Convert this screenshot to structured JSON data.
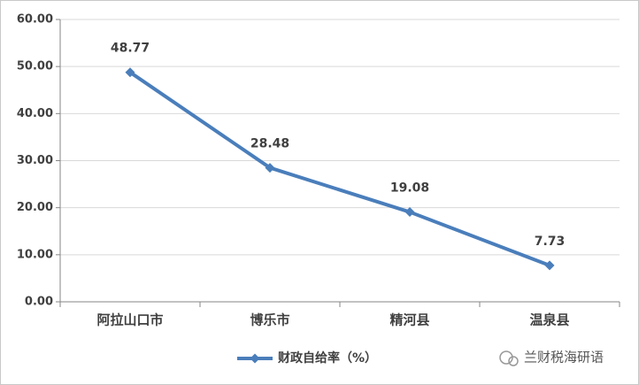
{
  "chart_data": {
    "type": "line",
    "categories": [
      "阿拉山口市",
      "博乐市",
      "精河县",
      "温泉县"
    ],
    "series": [
      {
        "name": "财政自给率（%）",
        "color": "#4a7ebb",
        "values": [
          48.77,
          28.48,
          19.08,
          7.73
        ]
      }
    ],
    "ylim": [
      0,
      60
    ],
    "yticks": [
      {
        "value": 0,
        "label": "0.00"
      },
      {
        "value": 10,
        "label": "10.00"
      },
      {
        "value": 20,
        "label": "20.00"
      },
      {
        "value": 30,
        "label": "30.00"
      },
      {
        "value": 40,
        "label": "40.00"
      },
      {
        "value": 50,
        "label": "50.00"
      },
      {
        "value": 60,
        "label": "60.00"
      }
    ],
    "grid": true,
    "legend": "bottom",
    "watermark": "兰财税海研语"
  }
}
